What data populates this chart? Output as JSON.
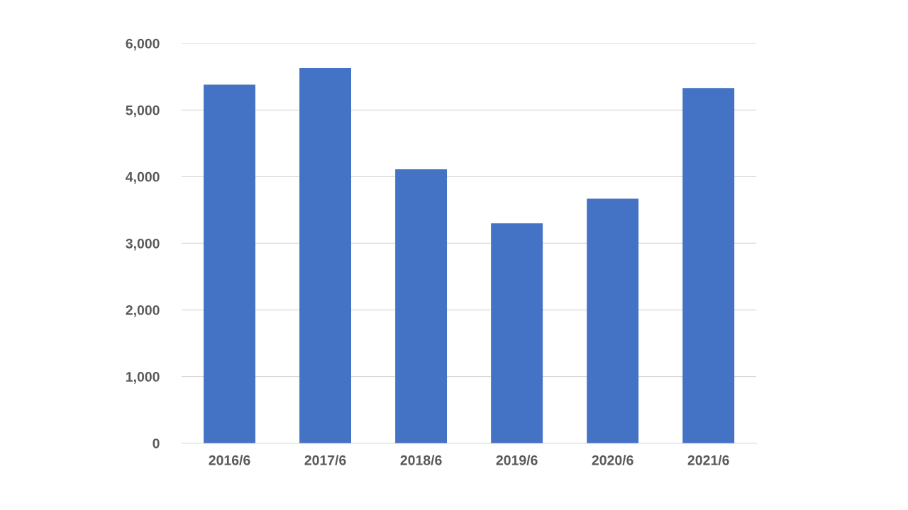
{
  "chart_data": {
    "type": "bar",
    "categories": [
      "2016/6",
      "2017/6",
      "2018/6",
      "2019/6",
      "2020/6",
      "2021/6"
    ],
    "values": [
      5380,
      5630,
      4110,
      3300,
      3670,
      5330
    ],
    "color": "#4472c4",
    "ylim": [
      0,
      6000
    ],
    "yticks": [
      0,
      {
        "value": 1000,
        "label": "1,000"
      },
      {
        "value": 2000,
        "label": "2,000"
      },
      {
        "value": 3000,
        "label": "3,000"
      },
      {
        "value": 4000,
        "label": "4,000"
      },
      {
        "value": 5000,
        "label": "5,000"
      },
      {
        "value": 6000,
        "label": "6,000"
      }
    ],
    "grid": "y"
  }
}
